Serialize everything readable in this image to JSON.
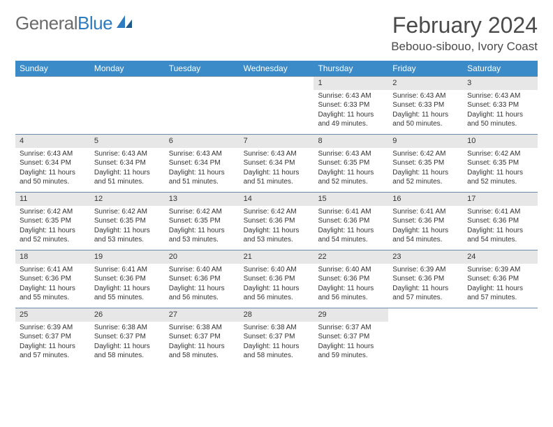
{
  "logo": {
    "text_gray": "General",
    "text_blue": "Blue"
  },
  "title": "February 2024",
  "location": "Bebouo-sibouo, Ivory Coast",
  "colors": {
    "header_bg": "#3b8bc9",
    "daynum_bg": "#e7e7e7",
    "week_border": "#6a8ba8",
    "logo_gray": "#6b6b6b",
    "logo_blue": "#2d7bc0"
  },
  "weekdays": [
    "Sunday",
    "Monday",
    "Tuesday",
    "Wednesday",
    "Thursday",
    "Friday",
    "Saturday"
  ],
  "weeks": [
    [
      {
        "day": "",
        "lines": []
      },
      {
        "day": "",
        "lines": []
      },
      {
        "day": "",
        "lines": []
      },
      {
        "day": "",
        "lines": []
      },
      {
        "day": "1",
        "lines": [
          "Sunrise: 6:43 AM",
          "Sunset: 6:33 PM",
          "Daylight: 11 hours and 49 minutes."
        ]
      },
      {
        "day": "2",
        "lines": [
          "Sunrise: 6:43 AM",
          "Sunset: 6:33 PM",
          "Daylight: 11 hours and 50 minutes."
        ]
      },
      {
        "day": "3",
        "lines": [
          "Sunrise: 6:43 AM",
          "Sunset: 6:33 PM",
          "Daylight: 11 hours and 50 minutes."
        ]
      }
    ],
    [
      {
        "day": "4",
        "lines": [
          "Sunrise: 6:43 AM",
          "Sunset: 6:34 PM",
          "Daylight: 11 hours and 50 minutes."
        ]
      },
      {
        "day": "5",
        "lines": [
          "Sunrise: 6:43 AM",
          "Sunset: 6:34 PM",
          "Daylight: 11 hours and 51 minutes."
        ]
      },
      {
        "day": "6",
        "lines": [
          "Sunrise: 6:43 AM",
          "Sunset: 6:34 PM",
          "Daylight: 11 hours and 51 minutes."
        ]
      },
      {
        "day": "7",
        "lines": [
          "Sunrise: 6:43 AM",
          "Sunset: 6:34 PM",
          "Daylight: 11 hours and 51 minutes."
        ]
      },
      {
        "day": "8",
        "lines": [
          "Sunrise: 6:43 AM",
          "Sunset: 6:35 PM",
          "Daylight: 11 hours and 52 minutes."
        ]
      },
      {
        "day": "9",
        "lines": [
          "Sunrise: 6:42 AM",
          "Sunset: 6:35 PM",
          "Daylight: 11 hours and 52 minutes."
        ]
      },
      {
        "day": "10",
        "lines": [
          "Sunrise: 6:42 AM",
          "Sunset: 6:35 PM",
          "Daylight: 11 hours and 52 minutes."
        ]
      }
    ],
    [
      {
        "day": "11",
        "lines": [
          "Sunrise: 6:42 AM",
          "Sunset: 6:35 PM",
          "Daylight: 11 hours and 52 minutes."
        ]
      },
      {
        "day": "12",
        "lines": [
          "Sunrise: 6:42 AM",
          "Sunset: 6:35 PM",
          "Daylight: 11 hours and 53 minutes."
        ]
      },
      {
        "day": "13",
        "lines": [
          "Sunrise: 6:42 AM",
          "Sunset: 6:35 PM",
          "Daylight: 11 hours and 53 minutes."
        ]
      },
      {
        "day": "14",
        "lines": [
          "Sunrise: 6:42 AM",
          "Sunset: 6:36 PM",
          "Daylight: 11 hours and 53 minutes."
        ]
      },
      {
        "day": "15",
        "lines": [
          "Sunrise: 6:41 AM",
          "Sunset: 6:36 PM",
          "Daylight: 11 hours and 54 minutes."
        ]
      },
      {
        "day": "16",
        "lines": [
          "Sunrise: 6:41 AM",
          "Sunset: 6:36 PM",
          "Daylight: 11 hours and 54 minutes."
        ]
      },
      {
        "day": "17",
        "lines": [
          "Sunrise: 6:41 AM",
          "Sunset: 6:36 PM",
          "Daylight: 11 hours and 54 minutes."
        ]
      }
    ],
    [
      {
        "day": "18",
        "lines": [
          "Sunrise: 6:41 AM",
          "Sunset: 6:36 PM",
          "Daylight: 11 hours and 55 minutes."
        ]
      },
      {
        "day": "19",
        "lines": [
          "Sunrise: 6:41 AM",
          "Sunset: 6:36 PM",
          "Daylight: 11 hours and 55 minutes."
        ]
      },
      {
        "day": "20",
        "lines": [
          "Sunrise: 6:40 AM",
          "Sunset: 6:36 PM",
          "Daylight: 11 hours and 56 minutes."
        ]
      },
      {
        "day": "21",
        "lines": [
          "Sunrise: 6:40 AM",
          "Sunset: 6:36 PM",
          "Daylight: 11 hours and 56 minutes."
        ]
      },
      {
        "day": "22",
        "lines": [
          "Sunrise: 6:40 AM",
          "Sunset: 6:36 PM",
          "Daylight: 11 hours and 56 minutes."
        ]
      },
      {
        "day": "23",
        "lines": [
          "Sunrise: 6:39 AM",
          "Sunset: 6:36 PM",
          "Daylight: 11 hours and 57 minutes."
        ]
      },
      {
        "day": "24",
        "lines": [
          "Sunrise: 6:39 AM",
          "Sunset: 6:36 PM",
          "Daylight: 11 hours and 57 minutes."
        ]
      }
    ],
    [
      {
        "day": "25",
        "lines": [
          "Sunrise: 6:39 AM",
          "Sunset: 6:37 PM",
          "Daylight: 11 hours and 57 minutes."
        ]
      },
      {
        "day": "26",
        "lines": [
          "Sunrise: 6:38 AM",
          "Sunset: 6:37 PM",
          "Daylight: 11 hours and 58 minutes."
        ]
      },
      {
        "day": "27",
        "lines": [
          "Sunrise: 6:38 AM",
          "Sunset: 6:37 PM",
          "Daylight: 11 hours and 58 minutes."
        ]
      },
      {
        "day": "28",
        "lines": [
          "Sunrise: 6:38 AM",
          "Sunset: 6:37 PM",
          "Daylight: 11 hours and 58 minutes."
        ]
      },
      {
        "day": "29",
        "lines": [
          "Sunrise: 6:37 AM",
          "Sunset: 6:37 PM",
          "Daylight: 11 hours and 59 minutes."
        ]
      },
      {
        "day": "",
        "lines": []
      },
      {
        "day": "",
        "lines": []
      }
    ]
  ]
}
